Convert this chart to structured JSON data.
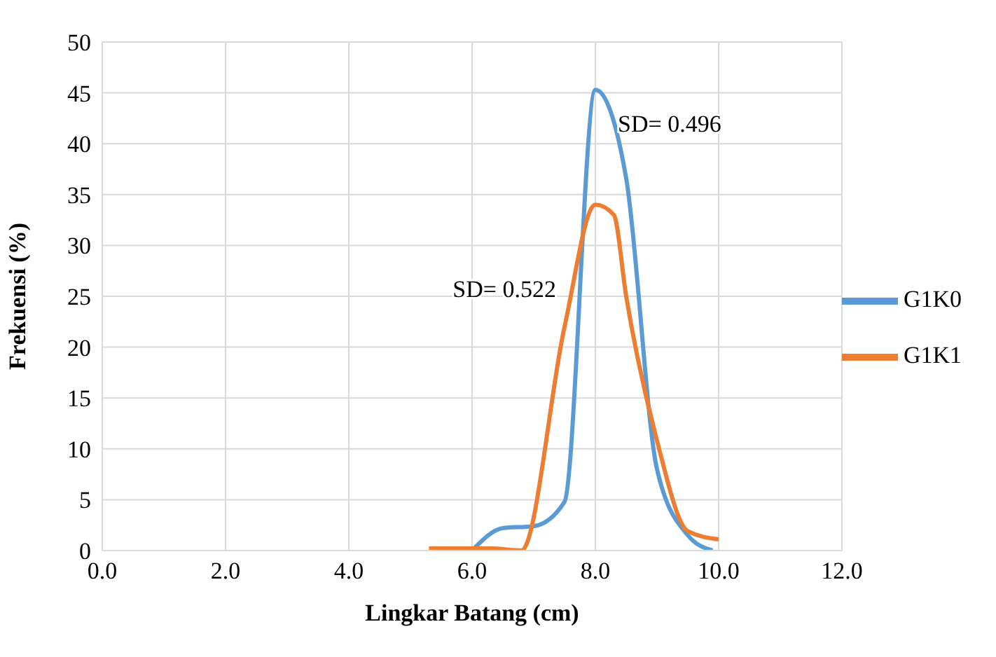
{
  "chart_data": {
    "type": "line",
    "xlabel": "Lingkar Batang (cm)",
    "ylabel": "Frekuensi (%)",
    "xlim": [
      0,
      12
    ],
    "xticks": [
      {
        "value": 0,
        "label": "0.0"
      },
      {
        "value": 2,
        "label": "2.0"
      },
      {
        "value": 4,
        "label": "4.0"
      },
      {
        "value": 6,
        "label": "6.0"
      },
      {
        "value": 8,
        "label": "8.0"
      },
      {
        "value": 10,
        "label": "10.0"
      },
      {
        "value": 12,
        "label": "12.0"
      }
    ],
    "ylim": [
      0,
      50
    ],
    "yticks": [
      0,
      5,
      10,
      15,
      20,
      25,
      30,
      35,
      40,
      45,
      50
    ],
    "grid": true,
    "legend": "right",
    "marker": "none",
    "line_style": "solid",
    "series": [
      {
        "name": "G1K0",
        "color": "#5b9bd5",
        "x": [
          6.0,
          6.5,
          7.0,
          7.5,
          8.0,
          8.5,
          9.0,
          9.5,
          9.9
        ],
        "values": [
          0,
          2.2,
          2.4,
          4.8,
          45.3,
          36.6,
          8,
          1.5,
          0
        ]
      },
      {
        "name": "G1K1",
        "color": "#ed7d31",
        "x": [
          5.3,
          6.3,
          6.8,
          7.5,
          8.0,
          8.3,
          8.5,
          9.0,
          9.5,
          10.0
        ],
        "values": [
          0.2,
          0.2,
          0,
          22,
          34,
          33,
          25,
          10.8,
          1.9,
          1.1
        ]
      }
    ],
    "annotations": [
      "SD= 0.496",
      "SD= 0.522"
    ]
  }
}
